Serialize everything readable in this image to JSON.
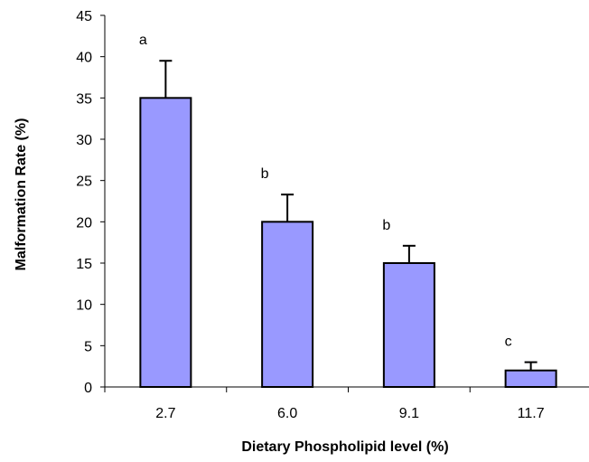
{
  "chart_data": {
    "type": "bar",
    "title": "",
    "xlabel": "Dietary Phospholipid level (%)",
    "ylabel": "Malformation Rate (%)",
    "categories": [
      "2.7",
      "6.0",
      "9.1",
      "11.7"
    ],
    "values": [
      35,
      20,
      15,
      2
    ],
    "error_upper": [
      4.5,
      3.3,
      2.1,
      1.0
    ],
    "significance_labels": [
      "a",
      "b",
      "b",
      "c"
    ],
    "ylim": [
      0,
      45
    ],
    "yticks": [
      "0",
      "5",
      "10",
      "15",
      "20",
      "25",
      "30",
      "35",
      "40",
      "45"
    ],
    "grid": false,
    "legend": "none",
    "bar_color": "#9999ff",
    "bar_stroke": "#000000"
  }
}
